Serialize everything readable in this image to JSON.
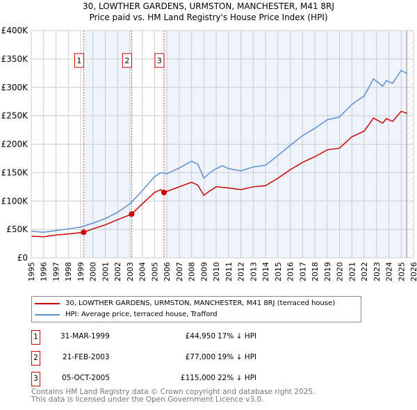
{
  "title": "30, LOWTHER GARDENS, URMSTON, MANCHESTER, M41 8RJ",
  "subtitle": "Price paid vs. HM Land Registry's House Price Index (HPI)",
  "colors": {
    "property": "#cc0000",
    "hpi": "#5b8fd4",
    "shade": "#eef3fc"
  },
  "chart_data": {
    "type": "line",
    "xlim": [
      1995,
      2026
    ],
    "ylim": [
      0,
      400000
    ],
    "yticks": [
      0,
      50000,
      100000,
      150000,
      200000,
      250000,
      300000,
      350000,
      400000
    ],
    "ytick_labels": [
      "£0",
      "£50K",
      "£100K",
      "£150K",
      "£200K",
      "£250K",
      "£300K",
      "£350K",
      "£400K"
    ],
    "xticks": [
      1995,
      1996,
      1997,
      1998,
      1999,
      2000,
      2001,
      2002,
      2003,
      2004,
      2005,
      2006,
      2007,
      2008,
      2009,
      2010,
      2011,
      2012,
      2013,
      2014,
      2015,
      2016,
      2017,
      2018,
      2019,
      2020,
      2021,
      2022,
      2023,
      2024,
      2025,
      2026
    ],
    "series": [
      {
        "name": "30, LOWTHER GARDENS, URMSTON, MANCHESTER, M41 8RJ (terraced house)",
        "color": "#cc0000",
        "x": [
          1995,
          1996,
          1997,
          1998,
          1999.25,
          2000,
          2001,
          2002,
          2003.14,
          2004,
          2005,
          2005.5,
          2005.76,
          2007,
          2008,
          2008.5,
          2009,
          2009.5,
          2010,
          2011,
          2012,
          2013,
          2014,
          2015,
          2016,
          2017,
          2018,
          2019,
          2020,
          2021,
          2022,
          2022.75,
          2023.5,
          2023.8,
          2024.3,
          2025,
          2025.5
        ],
        "y": [
          38000,
          37000,
          40000,
          42000,
          44950,
          51000,
          58000,
          67000,
          77000,
          95000,
          115000,
          120000,
          115000,
          125000,
          133000,
          128000,
          110000,
          118000,
          125000,
          123000,
          120000,
          125000,
          127000,
          140000,
          155000,
          168000,
          178000,
          190000,
          193000,
          213000,
          223000,
          246000,
          237000,
          245000,
          240000,
          258000,
          254000
        ]
      },
      {
        "name": "HPI: Average price, terraced house, Trafford",
        "color": "#5b8fd4",
        "x": [
          1995,
          1996,
          1997,
          1998,
          1999,
          2000,
          2001,
          2002,
          2003,
          2004,
          2005,
          2005.5,
          2006,
          2007,
          2008,
          2008.5,
          2009,
          2009.5,
          2010,
          2010.5,
          2011,
          2012,
          2013,
          2014,
          2015,
          2016,
          2017,
          2018,
          2019,
          2020,
          2021,
          2022,
          2022.75,
          2023.5,
          2023.8,
          2024.3,
          2025,
          2025.5
        ],
        "y": [
          47000,
          45000,
          48000,
          51000,
          54000,
          61000,
          69000,
          80000,
          95000,
          118000,
          143000,
          150000,
          148000,
          158000,
          170000,
          165000,
          140000,
          150000,
          157000,
          162000,
          157000,
          153000,
          160000,
          163000,
          180000,
          198000,
          215000,
          228000,
          243000,
          248000,
          270000,
          285000,
          315000,
          302000,
          312000,
          307000,
          330000,
          324000
        ]
      }
    ],
    "sales": [
      {
        "label": "1",
        "x": 1999.25,
        "y": 44950
      },
      {
        "label": "2",
        "x": 2003.14,
        "y": 77000
      },
      {
        "label": "3",
        "x": 2005.76,
        "y": 115000
      }
    ],
    "data_end": 2025.45,
    "legend_position": "below"
  },
  "legend": [
    "30, LOWTHER GARDENS, URMSTON, MANCHESTER, M41 8RJ (terraced house)",
    "HPI: Average price, terraced house, Trafford"
  ],
  "transactions": [
    {
      "num": "1",
      "date": "31-MAR-1999",
      "price": "£44,950",
      "hpi": "17% ↓ HPI"
    },
    {
      "num": "2",
      "date": "21-FEB-2003",
      "price": "£77,000",
      "hpi": "19% ↓ HPI"
    },
    {
      "num": "3",
      "date": "05-OCT-2005",
      "price": "£115,000",
      "hpi": "22% ↓ HPI"
    }
  ],
  "footer": [
    "Contains HM Land Registry data © Crown copyright and database right 2025.",
    "This data is licensed under the Open Government Licence v3.0."
  ]
}
